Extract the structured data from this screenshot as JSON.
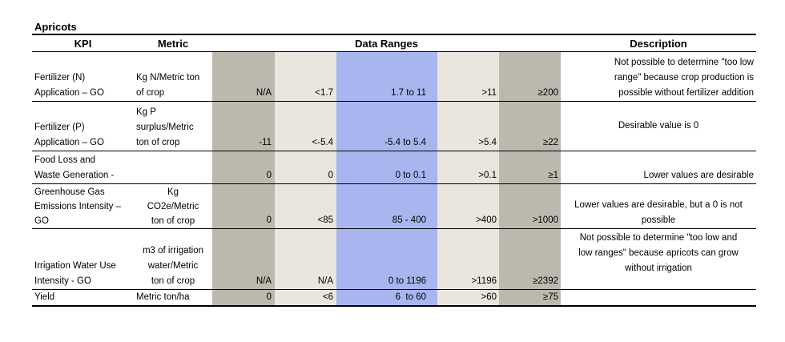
{
  "title": "Apricots",
  "headers": {
    "kpi": "KPI",
    "metric": "Metric",
    "ranges": "Data Ranges",
    "description": "Description"
  },
  "rows": [
    {
      "kpi": [
        "",
        "Fertilizer (N)",
        "Application – GO"
      ],
      "metric": [
        "",
        "Kg N/Metric ton",
        "of crop"
      ],
      "r1": "N/A",
      "r2": "<1.7",
      "r3": "1.7 to 11",
      "r4": ">11",
      "r5": "≥200",
      "desc": [
        "Not possible to determine \"too low",
        "range\" because crop production is",
        "possible without fertilizer addition"
      ]
    },
    {
      "kpi": [
        "",
        "Fertilizer (P)",
        "Application – GO"
      ],
      "metric": [
        "Kg P",
        "surplus/Metric",
        "ton of crop"
      ],
      "r1": "-11",
      "r2": "<-5.4",
      "r3": "-5.4 to 5.4",
      "r4": ">5.4",
      "r5": "≥22",
      "desc": [
        "Desirable value is 0"
      ]
    },
    {
      "kpi": [
        "Food Loss and",
        "Waste Generation -"
      ],
      "metric": [],
      "r1": "0",
      "r2": "0",
      "r3": "0 to 0.1",
      "r4": ">0.1",
      "r5": "≥1",
      "desc": [
        "Lower values are desirable"
      ]
    },
    {
      "kpi": [
        "Greenhouse Gas",
        "Emissions Intensity –",
        "GO"
      ],
      "metric": [
        "Kg",
        "CO2e/Metric",
        "ton of crop"
      ],
      "r1": "0",
      "r2": "<85",
      "r3": "85 - 400",
      "r4": ">400",
      "r5": ">1000",
      "desc": [
        "Lower values are desirable, but a 0 is not",
        "possible"
      ]
    },
    {
      "kpi": [
        "",
        "Irrigation Water Use",
        "Intensity - GO"
      ],
      "metric": [
        "m3 of irrigation",
        "water/Metric",
        "ton of crop"
      ],
      "r1": "N/A",
      "r2": "N/A",
      "r3": "0 to 1196",
      "r4": ">1196",
      "r5": "≥2392",
      "desc": [
        "Not possible to determine \"too low and",
        "low ranges\" because apricots can grow",
        "without irrigation"
      ]
    },
    {
      "kpi": [
        "Yield"
      ],
      "metric": [
        "Metric ton/ha"
      ],
      "r1": "0",
      "r2": "<6",
      "r3": "6  to 60",
      "r4": ">60",
      "r5": "≥75",
      "desc": []
    }
  ]
}
